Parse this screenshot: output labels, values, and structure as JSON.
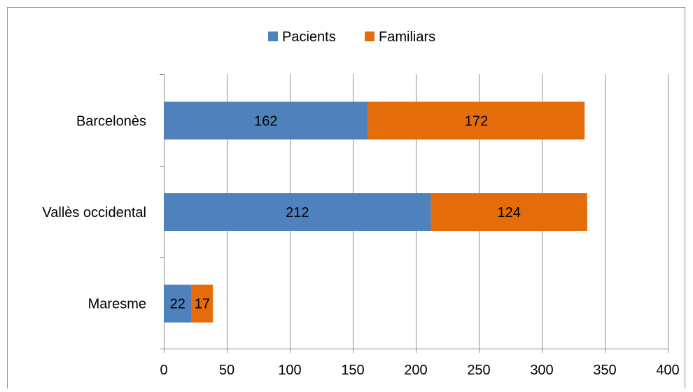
{
  "chart_data": {
    "type": "bar",
    "orientation": "horizontal",
    "stacked": true,
    "categories": [
      "Barcelonès",
      "Vallès occidental",
      "Maresme"
    ],
    "series": [
      {
        "name": "Pacients",
        "values": [
          162,
          212,
          22
        ],
        "color": "#4f81bd"
      },
      {
        "name": "Familiars",
        "values": [
          172,
          124,
          17
        ],
        "color": "#e46c0a"
      }
    ],
    "xlim": [
      0,
      400
    ],
    "xticks": [
      0,
      50,
      100,
      150,
      200,
      250,
      300,
      350,
      400
    ],
    "title": "",
    "xlabel": "",
    "ylabel": "",
    "grid": true,
    "legend_position": "top",
    "data_labels": true
  }
}
